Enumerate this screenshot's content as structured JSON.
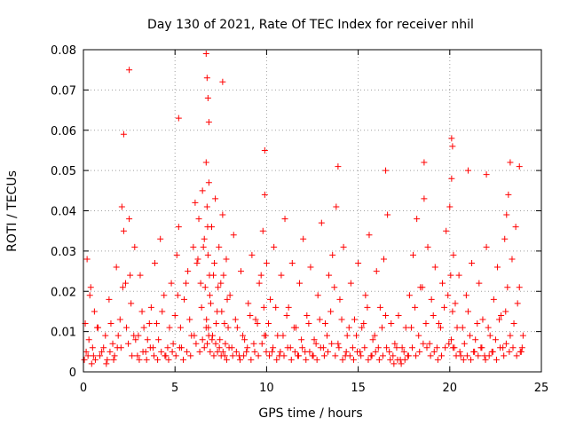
{
  "chart_data": {
    "type": "scatter",
    "title": "Day 130 of 2021, Rate Of TEC Index for receiver nhil",
    "xlabel": "GPS time / hours",
    "ylabel": "ROTI / TECUs",
    "xlim": [
      0,
      25
    ],
    "ylim": [
      0,
      0.08
    ],
    "xticks": [
      0,
      5,
      10,
      15,
      20,
      25
    ],
    "xtick_labels": [
      "0",
      "5",
      "10",
      "15",
      "20",
      "25"
    ],
    "yticks": [
      0,
      0.01,
      0.02,
      0.03,
      0.04,
      0.05,
      0.06,
      0.07,
      0.08
    ],
    "ytick_labels": [
      "0",
      "0.01",
      "0.02",
      "0.03",
      "0.04",
      "0.05",
      "0.06",
      "0.07",
      "0.08"
    ],
    "grid": true,
    "marker": "+",
    "color": "#ff0000",
    "series": [
      {
        "name": "ROTI",
        "x": [
          0.1,
          0.2,
          0.3,
          0.4,
          0.5,
          0.6,
          0.8,
          1.0,
          1.2,
          1.4,
          1.6,
          1.8,
          2.0,
          2.1,
          2.2,
          2.3,
          2.5,
          2.6,
          2.8,
          3.0,
          3.1,
          3.3,
          3.5,
          3.7,
          3.9,
          4.0,
          4.2,
          4.4,
          4.6,
          4.8,
          5.0,
          5.1,
          5.2,
          5.3,
          5.5,
          5.7,
          5.9,
          6.0,
          6.1,
          6.2,
          6.3,
          6.4,
          6.5,
          6.6,
          6.7,
          6.75,
          6.8,
          6.85,
          6.9,
          7.0,
          7.1,
          7.2,
          7.3,
          7.4,
          7.5,
          7.6,
          7.7,
          7.8,
          8.0,
          8.2,
          8.4,
          8.6,
          8.8,
          9.0,
          9.2,
          9.4,
          9.6,
          9.8,
          9.9,
          10.0,
          10.2,
          10.4,
          10.6,
          10.8,
          11.0,
          11.2,
          11.4,
          11.6,
          11.8,
          12.0,
          12.2,
          12.4,
          12.6,
          12.8,
          13.0,
          13.2,
          13.4,
          13.6,
          13.8,
          14.0,
          14.2,
          14.4,
          14.6,
          14.8,
          15.0,
          15.2,
          15.4,
          15.6,
          15.8,
          16.0,
          16.2,
          16.4,
          16.6,
          16.8,
          17.0,
          17.2,
          17.4,
          17.6,
          17.8,
          18.0,
          18.2,
          18.4,
          18.6,
          18.8,
          19.0,
          19.2,
          19.4,
          19.6,
          19.8,
          20.0,
          20.1,
          20.2,
          20.3,
          20.5,
          20.7,
          20.9,
          21.0,
          21.2,
          21.4,
          21.6,
          21.8,
          22.0,
          22.2,
          22.4,
          22.6,
          22.8,
          23.0,
          23.1,
          23.2,
          23.4,
          23.6,
          23.8,
          24.0,
          0.15,
          0.35,
          0.55,
          0.75,
          1.1,
          1.3,
          1.5,
          1.7,
          1.9,
          2.05,
          2.15,
          2.35,
          2.55,
          2.75,
          2.95,
          3.2,
          3.4,
          3.6,
          3.8,
          4.1,
          4.3,
          4.5,
          4.7,
          4.9,
          5.15,
          5.35,
          5.6,
          5.8,
          6.05,
          6.25,
          6.45,
          6.55,
          6.65,
          6.72,
          6.78,
          6.82,
          6.88,
          6.95,
          7.05,
          7.15,
          7.25,
          7.35,
          7.45,
          7.55,
          7.65,
          7.75,
          7.85,
          7.9,
          8.1,
          8.3,
          8.5,
          8.7,
          8.9,
          9.1,
          9.3,
          9.5,
          9.7,
          9.85,
          9.95,
          10.1,
          10.3,
          10.5,
          10.7,
          10.9,
          11.1,
          11.3,
          11.5,
          11.7,
          11.9,
          12.1,
          12.3,
          12.5,
          12.7,
          12.9,
          13.1,
          13.3,
          13.5,
          13.7,
          13.9,
          14.1,
          14.3,
          14.5,
          14.7,
          14.9,
          15.1,
          15.3,
          15.5,
          15.7,
          15.9,
          16.1,
          16.3,
          16.5,
          16.7,
          16.9,
          17.1,
          17.3,
          17.5,
          17.7,
          17.9,
          18.1,
          18.3,
          18.5,
          18.7,
          18.9,
          19.1,
          19.3,
          19.5,
          19.7,
          19.9,
          20.05,
          20.15,
          20.25,
          20.4,
          20.6,
          20.8,
          21.1,
          21.3,
          21.5,
          21.7,
          21.9,
          22.1,
          22.3,
          22.5,
          22.7,
          22.9,
          23.05,
          23.15,
          23.3,
          23.5,
          23.7,
          23.9,
          0.05,
          0.25,
          0.45,
          0.65,
          0.9,
          1.25,
          1.45,
          1.65,
          1.85,
          2.45,
          2.65,
          2.85,
          3.05,
          3.25,
          3.45,
          3.65,
          3.85,
          4.05,
          4.25,
          4.45,
          4.65,
          4.85,
          5.05,
          5.25,
          5.45,
          5.65,
          5.85,
          6.15,
          6.35,
          6.5,
          6.6,
          6.7,
          6.76,
          6.84,
          6.92,
          7.02,
          7.12,
          7.22,
          7.32,
          7.42,
          7.52,
          7.62,
          7.72,
          7.82,
          7.95,
          8.15,
          8.35,
          8.55,
          8.75,
          8.95,
          9.15,
          9.35,
          9.55,
          9.75,
          9.88,
          9.98,
          10.15,
          10.35,
          10.55,
          10.75,
          10.95,
          11.15,
          11.35,
          11.55,
          11.75,
          11.95,
          12.15,
          12.35,
          12.55,
          12.75,
          12.95,
          13.15,
          13.35,
          13.55,
          13.75,
          13.95,
          14.15,
          14.35,
          14.55,
          14.75,
          14.95,
          15.15,
          15.35,
          15.55,
          15.75,
          15.95,
          16.15,
          16.35,
          16.55,
          16.75,
          16.95,
          17.15,
          17.35,
          17.55,
          17.75,
          17.95,
          18.15,
          18.35,
          18.55,
          18.75,
          18.95,
          19.15,
          19.35,
          19.55,
          19.75,
          19.95,
          20.08,
          20.18,
          20.35,
          20.55,
          20.75,
          20.95,
          21.15,
          21.35,
          21.55,
          21.75,
          21.95,
          22.15,
          22.35,
          22.55,
          22.75,
          22.95,
          23.08,
          23.25,
          23.45,
          23.65,
          23.85,
          23.95,
          2.2,
          2.5,
          6.7,
          6.75,
          6.8,
          6.85,
          7.6,
          5.2,
          20.1,
          20.15,
          23.3,
          23.8,
          9.9,
          13.9,
          16.5,
          18.6,
          21.0,
          22.0
        ],
        "y": [
          0.012,
          0.028,
          0.008,
          0.021,
          0.006,
          0.015,
          0.011,
          0.005,
          0.009,
          0.018,
          0.007,
          0.026,
          0.013,
          0.041,
          0.035,
          0.022,
          0.038,
          0.017,
          0.031,
          0.009,
          0.024,
          0.011,
          0.008,
          0.016,
          0.027,
          0.012,
          0.033,
          0.019,
          0.006,
          0.022,
          0.014,
          0.029,
          0.036,
          0.011,
          0.018,
          0.025,
          0.009,
          0.031,
          0.042,
          0.027,
          0.038,
          0.022,
          0.045,
          0.033,
          0.052,
          0.041,
          0.029,
          0.047,
          0.019,
          0.036,
          0.024,
          0.043,
          0.015,
          0.031,
          0.022,
          0.039,
          0.012,
          0.028,
          0.019,
          0.034,
          0.011,
          0.025,
          0.008,
          0.017,
          0.029,
          0.013,
          0.022,
          0.035,
          0.044,
          0.027,
          0.018,
          0.031,
          0.009,
          0.024,
          0.038,
          0.016,
          0.027,
          0.011,
          0.022,
          0.033,
          0.014,
          0.026,
          0.008,
          0.019,
          0.037,
          0.012,
          0.024,
          0.029,
          0.041,
          0.018,
          0.031,
          0.009,
          0.022,
          0.013,
          0.027,
          0.011,
          0.019,
          0.034,
          0.008,
          0.025,
          0.016,
          0.028,
          0.039,
          0.012,
          0.007,
          0.014,
          0.006,
          0.011,
          0.019,
          0.029,
          0.038,
          0.021,
          0.043,
          0.031,
          0.018,
          0.026,
          0.012,
          0.022,
          0.035,
          0.041,
          0.048,
          0.029,
          0.017,
          0.024,
          0.011,
          0.019,
          0.015,
          0.027,
          0.008,
          0.022,
          0.013,
          0.031,
          0.009,
          0.018,
          0.026,
          0.014,
          0.033,
          0.039,
          0.044,
          0.028,
          0.036,
          0.021,
          0.009,
          0.005,
          0.019,
          0.004,
          0.011,
          0.006,
          0.003,
          0.012,
          0.004,
          0.009,
          0.006,
          0.021,
          0.011,
          0.024,
          0.009,
          0.004,
          0.015,
          0.005,
          0.012,
          0.006,
          0.008,
          0.015,
          0.004,
          0.011,
          0.007,
          0.019,
          0.006,
          0.022,
          0.013,
          0.009,
          0.028,
          0.016,
          0.031,
          0.021,
          0.013,
          0.036,
          0.011,
          0.024,
          0.017,
          0.009,
          0.027,
          0.012,
          0.021,
          0.008,
          0.015,
          0.024,
          0.007,
          0.018,
          0.011,
          0.006,
          0.013,
          0.004,
          0.009,
          0.005,
          0.014,
          0.007,
          0.012,
          0.024,
          0.016,
          0.009,
          0.012,
          0.005,
          0.016,
          0.004,
          0.009,
          0.014,
          0.006,
          0.011,
          0.004,
          0.008,
          0.005,
          0.012,
          0.004,
          0.007,
          0.013,
          0.006,
          0.009,
          0.015,
          0.021,
          0.007,
          0.013,
          0.004,
          0.011,
          0.006,
          0.009,
          0.005,
          0.012,
          0.016,
          0.004,
          0.009,
          0.006,
          0.011,
          0.014,
          0.005,
          0.004,
          0.006,
          0.003,
          0.005,
          0.004,
          0.011,
          0.016,
          0.009,
          0.021,
          0.012,
          0.007,
          0.014,
          0.006,
          0.011,
          0.016,
          0.019,
          0.024,
          0.015,
          0.006,
          0.011,
          0.004,
          0.007,
          0.009,
          0.005,
          0.012,
          0.006,
          0.004,
          0.011,
          0.005,
          0.008,
          0.013,
          0.006,
          0.015,
          0.021,
          0.009,
          0.012,
          0.017,
          0.005,
          0.003,
          0.004,
          0.002,
          0.003,
          0.004,
          0.002,
          0.005,
          0.003,
          0.006,
          0.007,
          0.004,
          0.008,
          0.003,
          0.005,
          0.003,
          0.006,
          0.004,
          0.003,
          0.005,
          0.004,
          0.003,
          0.005,
          0.004,
          0.006,
          0.003,
          0.005,
          0.004,
          0.007,
          0.005,
          0.008,
          0.006,
          0.011,
          0.007,
          0.009,
          0.005,
          0.008,
          0.004,
          0.007,
          0.005,
          0.006,
          0.004,
          0.005,
          0.004,
          0.003,
          0.006,
          0.004,
          0.005,
          0.003,
          0.004,
          0.006,
          0.003,
          0.005,
          0.004,
          0.007,
          0.009,
          0.005,
          0.004,
          0.006,
          0.003,
          0.005,
          0.004,
          0.006,
          0.003,
          0.005,
          0.004,
          0.006,
          0.003,
          0.005,
          0.004,
          0.003,
          0.006,
          0.004,
          0.005,
          0.007,
          0.004,
          0.006,
          0.003,
          0.005,
          0.004,
          0.003,
          0.005,
          0.004,
          0.006,
          0.003,
          0.004,
          0.005,
          0.003,
          0.004,
          0.006,
          0.003,
          0.002,
          0.003,
          0.002,
          0.003,
          0.004,
          0.006,
          0.004,
          0.005,
          0.007,
          0.006,
          0.004,
          0.005,
          0.003,
          0.004,
          0.006,
          0.007,
          0.008,
          0.006,
          0.004,
          0.005,
          0.003,
          0.004,
          0.003,
          0.005,
          0.004,
          0.006,
          0.003,
          0.004,
          0.005,
          0.003,
          0.006,
          0.004,
          0.007,
          0.005,
          0.006,
          0.004,
          0.005,
          0.006,
          0.059,
          0.075,
          0.079,
          0.073,
          0.068,
          0.062,
          0.072,
          0.063,
          0.058,
          0.056,
          0.052,
          0.051,
          0.055,
          0.051,
          0.05,
          0.052,
          0.05,
          0.049
        ]
      }
    ]
  }
}
